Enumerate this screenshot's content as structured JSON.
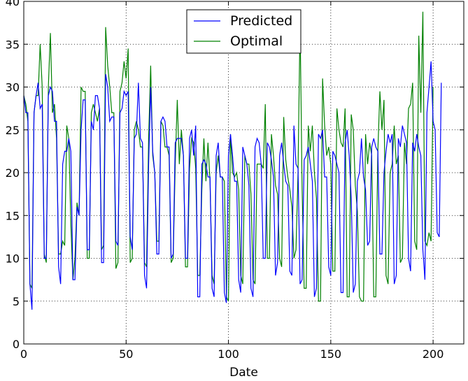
{
  "chart_data": {
    "type": "line",
    "title": "",
    "xlabel": "Date",
    "ylabel": "",
    "xlim": [
      0,
      215
    ],
    "ylim": [
      0,
      40
    ],
    "grid": true,
    "legend_position": "top-center",
    "x_ticks": [
      0,
      50,
      100,
      150,
      200
    ],
    "y_ticks": [
      0,
      5,
      10,
      15,
      20,
      25,
      30,
      35,
      40
    ],
    "series": [
      {
        "name": "Predicted",
        "color": "#0000ff",
        "values": [
          29,
          27,
          27,
          7,
          4,
          27,
          29,
          30.5,
          27.5,
          28,
          10,
          10,
          29,
          30,
          29.5,
          26,
          26,
          9,
          7,
          21,
          22.5,
          22.5,
          24,
          22.5,
          7.5,
          7.5,
          16,
          15,
          25,
          28.5,
          28.5,
          11,
          11,
          26,
          25,
          29,
          29,
          27.5,
          9.5,
          9.5,
          31.5,
          30,
          26,
          26.5,
          26.5,
          12,
          11.5,
          27,
          27.5,
          29.5,
          29,
          29.5,
          12.5,
          11,
          24,
          24.5,
          30.5,
          24,
          23.5,
          8,
          6.5,
          21,
          30,
          22.5,
          20,
          10.5,
          10.5,
          26,
          26.5,
          26,
          23,
          23,
          10,
          10.5,
          23.5,
          24,
          24,
          24,
          22,
          10,
          10,
          24,
          25,
          22,
          25.5,
          5.5,
          5.5,
          21,
          21.5,
          21,
          19.5,
          19.5,
          6.5,
          5.5,
          22,
          23.5,
          19.5,
          19.5,
          6,
          4.8,
          22,
          24.5,
          22,
          19,
          19,
          7.5,
          6,
          23,
          22,
          21,
          18.5,
          6.5,
          5.5,
          23,
          24,
          23.5,
          21,
          10,
          10,
          23.5,
          23,
          21.5,
          19.5,
          8,
          9.5,
          22,
          23.5,
          21,
          19,
          18.5,
          8.5,
          8,
          25.5,
          21,
          20.5,
          7,
          7.5,
          21.5,
          22,
          23,
          21,
          19,
          5.5,
          6.5,
          24.5,
          24,
          25,
          19.5,
          19.5,
          9,
          8,
          22.5,
          22,
          21,
          20,
          6,
          6,
          23.5,
          25,
          22,
          17,
          6,
          7,
          19,
          20,
          24,
          19.5,
          18,
          11.5,
          12,
          23,
          24,
          23,
          22.5,
          10.5,
          10.5,
          20,
          22.5,
          24.5,
          23.5,
          24.5,
          7,
          8,
          24,
          23,
          25.5,
          24.5,
          23.5,
          10,
          8.5,
          23.5,
          22.5,
          24.5,
          23,
          22,
          11,
          7.5,
          27,
          30,
          33,
          26,
          25,
          13,
          12.5,
          30.5
        ]
      },
      {
        "name": "Optimal",
        "color": "#008000",
        "values": [
          29,
          28,
          26,
          7,
          6.5,
          27,
          29,
          29,
          35,
          30,
          10.5,
          9.5,
          30,
          36.3,
          27,
          28,
          24,
          10.5,
          10.5,
          12,
          11.5,
          25.5,
          24,
          14,
          7.5,
          10,
          16.5,
          15,
          30,
          29.5,
          29.5,
          10,
          10,
          27,
          28,
          27,
          26,
          27.5,
          11,
          11.5,
          37,
          32.5,
          30,
          27,
          27,
          8.8,
          9.5,
          29.5,
          30.5,
          33,
          31,
          34.5,
          9.5,
          10,
          25,
          26,
          25,
          23,
          23,
          9.5,
          9,
          24,
          32.5,
          22,
          20,
          12,
          12,
          26,
          25.5,
          23,
          23,
          22,
          9.5,
          10,
          21,
          28.5,
          21,
          25,
          22,
          9,
          9,
          20.5,
          24,
          23.5,
          20.5,
          8,
          8,
          18,
          24,
          19,
          23.5,
          19,
          8,
          7,
          20,
          22,
          19.5,
          19.5,
          19,
          5.5,
          5,
          24.5,
          20,
          19.5,
          20,
          18,
          8,
          7,
          22,
          21,
          21,
          17.5,
          7.5,
          7,
          21,
          21,
          21,
          20.5,
          28,
          10,
          10,
          24.5,
          22,
          18.5,
          17.5,
          10,
          9,
          26.5,
          21.5,
          19.5,
          18,
          16,
          10,
          11,
          20,
          37.8,
          18,
          6.5,
          6.5,
          25.5,
          22.5,
          25.5,
          20,
          17,
          5,
          5,
          31,
          25.5,
          22,
          23,
          21,
          8.5,
          8.5,
          27.5,
          25,
          23.5,
          23,
          27.5,
          5.5,
          5.5,
          26.8,
          25,
          18.5,
          15.5,
          5.5,
          5,
          5,
          24.5,
          21,
          23.5,
          22,
          5.5,
          5.5,
          22.5,
          29.5,
          25,
          28.5,
          8,
          7,
          20,
          21,
          25.5,
          21,
          22,
          9.5,
          10,
          23.5,
          21,
          27.5,
          28,
          30.5,
          12,
          11,
          36,
          27,
          38.8,
          12,
          11.5,
          13,
          12,
          30
        ]
      }
    ]
  }
}
